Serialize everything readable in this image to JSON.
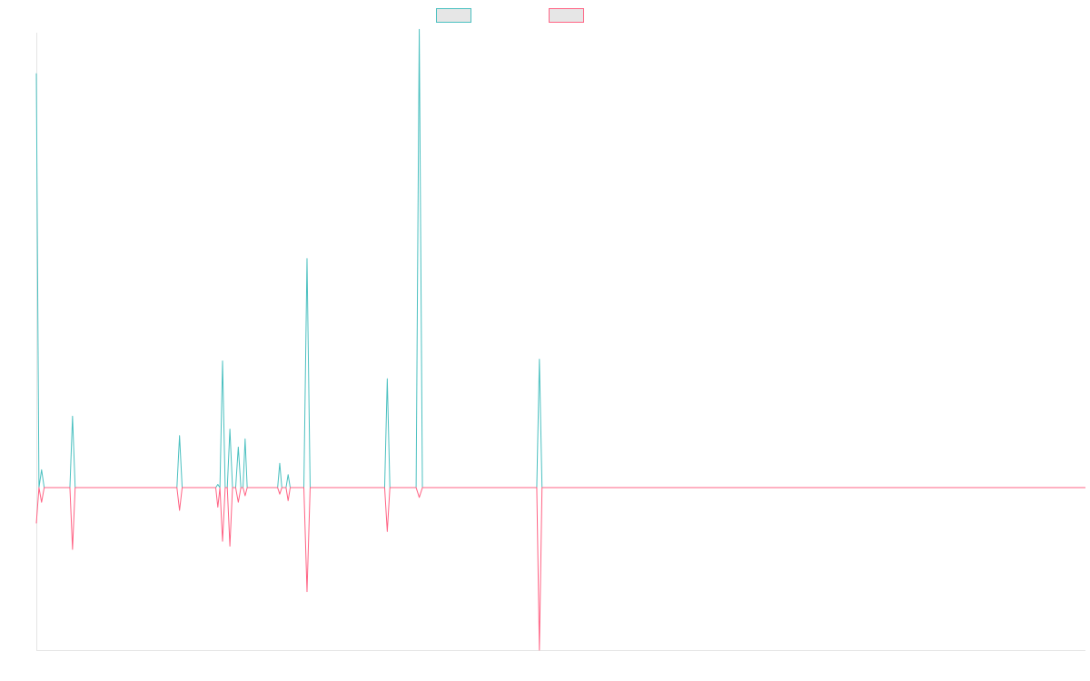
{
  "chart_data": {
    "type": "line",
    "title": "",
    "xlabel": "",
    "ylabel": "",
    "x_range": [
      0,
      1000
    ],
    "ylim": [
      -100,
      280
    ],
    "grid": false,
    "legend_placement": "top-center",
    "series": [
      {
        "color": "#4bc0c0",
        "points": [
          [
            0,
            255
          ],
          [
            2.5,
            0
          ],
          [
            5,
            11
          ],
          [
            7.5,
            0
          ],
          [
            32,
            0
          ],
          [
            34.5,
            44
          ],
          [
            37,
            0
          ],
          [
            134,
            0
          ],
          [
            136.5,
            32
          ],
          [
            139,
            0
          ],
          [
            171,
            0
          ],
          [
            173,
            2
          ],
          [
            175,
            0
          ],
          [
            177.5,
            78
          ],
          [
            180,
            0
          ],
          [
            182,
            0
          ],
          [
            184.5,
            36
          ],
          [
            187,
            0
          ],
          [
            190,
            0
          ],
          [
            192.5,
            25
          ],
          [
            195,
            0
          ],
          [
            197,
            0
          ],
          [
            199,
            30
          ],
          [
            201,
            0
          ],
          [
            230,
            0
          ],
          [
            232,
            15
          ],
          [
            234,
            0
          ],
          [
            238,
            0
          ],
          [
            240,
            8
          ],
          [
            242,
            0
          ],
          [
            255,
            0
          ],
          [
            258,
            141
          ],
          [
            261,
            0
          ],
          [
            332,
            0
          ],
          [
            334.5,
            67
          ],
          [
            337,
            0
          ],
          [
            362,
            0
          ],
          [
            365,
            282
          ],
          [
            368,
            0
          ],
          [
            477,
            0
          ],
          [
            479.5,
            79
          ],
          [
            482,
            0
          ],
          [
            1000,
            0
          ]
        ]
      },
      {
        "color": "#ff6384",
        "points": [
          [
            0,
            -22
          ],
          [
            2.5,
            0
          ],
          [
            5,
            -9
          ],
          [
            7.5,
            0
          ],
          [
            32,
            0
          ],
          [
            34.5,
            -38
          ],
          [
            37,
            0
          ],
          [
            134,
            0
          ],
          [
            136.5,
            -14
          ],
          [
            139,
            0
          ],
          [
            171,
            0
          ],
          [
            173,
            -12
          ],
          [
            175,
            0
          ],
          [
            177.5,
            -33
          ],
          [
            180,
            0
          ],
          [
            182,
            0
          ],
          [
            184.5,
            -36
          ],
          [
            187,
            0
          ],
          [
            190,
            0
          ],
          [
            192.5,
            -9
          ],
          [
            195,
            0
          ],
          [
            197,
            0
          ],
          [
            199,
            -5
          ],
          [
            201,
            0
          ],
          [
            230,
            0
          ],
          [
            232,
            -4
          ],
          [
            234,
            0
          ],
          [
            238,
            0
          ],
          [
            240,
            -8
          ],
          [
            242,
            0
          ],
          [
            255,
            0
          ],
          [
            258,
            -64
          ],
          [
            261,
            0
          ],
          [
            332,
            0
          ],
          [
            334.5,
            -27
          ],
          [
            337,
            0
          ],
          [
            362,
            0
          ],
          [
            365,
            -6
          ],
          [
            368,
            0
          ],
          [
            477,
            0
          ],
          [
            479.5,
            -100
          ],
          [
            482,
            0
          ],
          [
            1000,
            0
          ]
        ]
      }
    ]
  }
}
